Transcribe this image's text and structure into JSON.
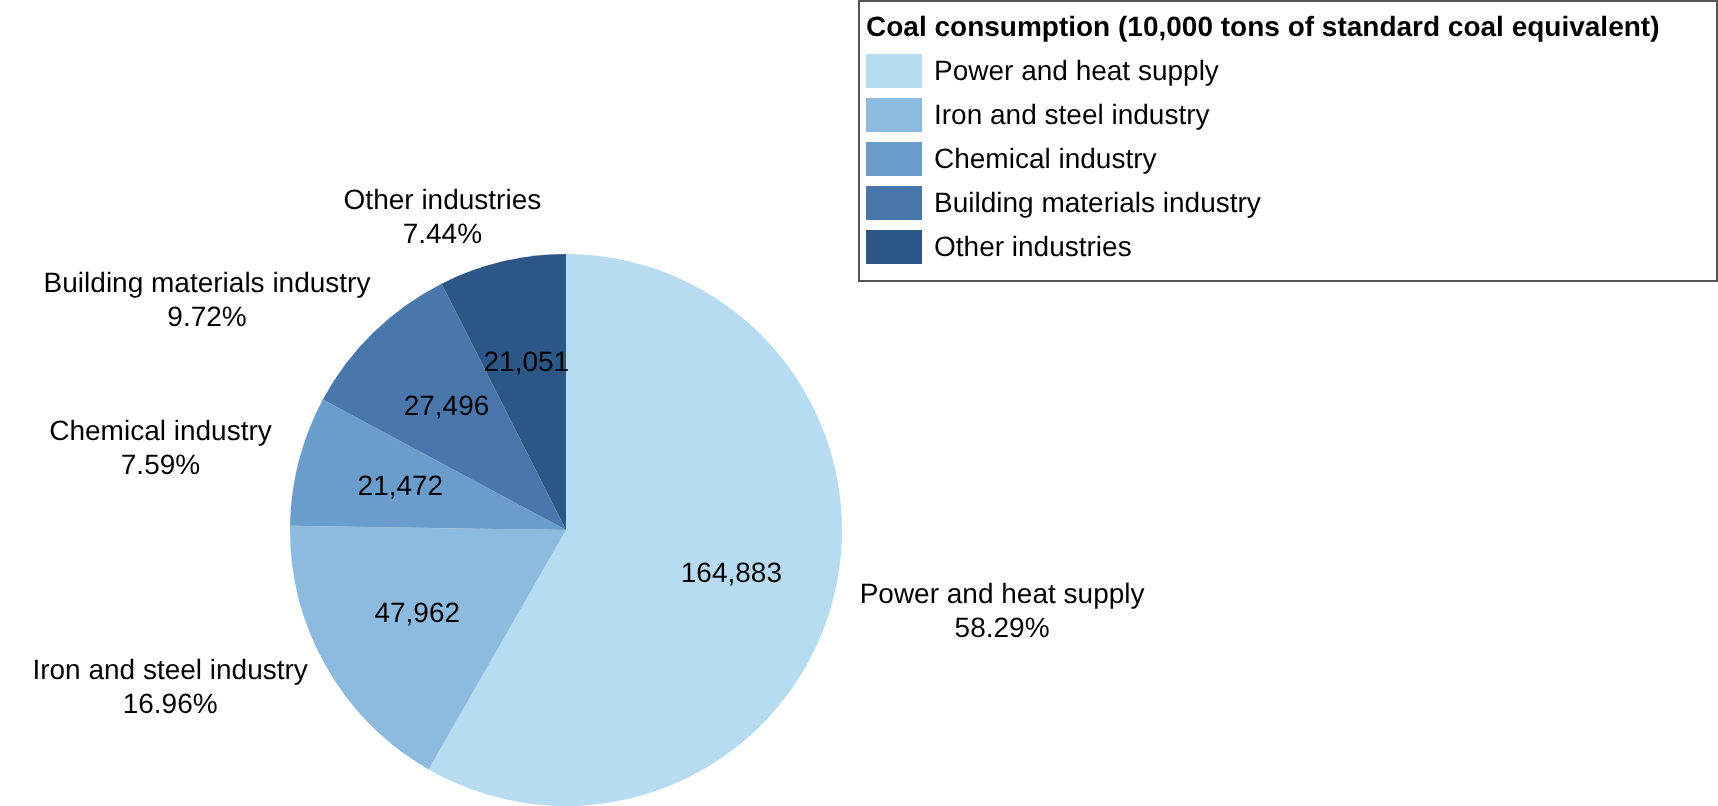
{
  "chart_data": {
    "type": "pie",
    "legend_title": "Coal consumption (10,000 tons of standard coal equivalent)",
    "legend": "top right",
    "categories": [
      "Power and heat supply",
      "Iron and steel industry",
      "Chemical industry",
      "Building materials industry",
      "Other industries"
    ],
    "values": [
      164883,
      47962,
      21472,
      27496,
      21051
    ],
    "value_labels": [
      "164,883",
      "47,962",
      "21,472",
      "27,496",
      "21,051"
    ],
    "annotations": [
      {
        "text": "58.29%",
        "x": "Power and heat supply"
      },
      {
        "text": "16.96%",
        "x": "Iron and steel industry"
      },
      {
        "text": "7.59%",
        "x": "Chemical industry"
      },
      {
        "text": "9.72%",
        "x": "Building materials industry"
      },
      {
        "text": "7.44%",
        "x": "Other industries"
      }
    ],
    "colors": [
      "#b7dbf1",
      "#8dbbdf",
      "#6a9dcb",
      "#4a77ab",
      "#2c5685"
    ]
  }
}
